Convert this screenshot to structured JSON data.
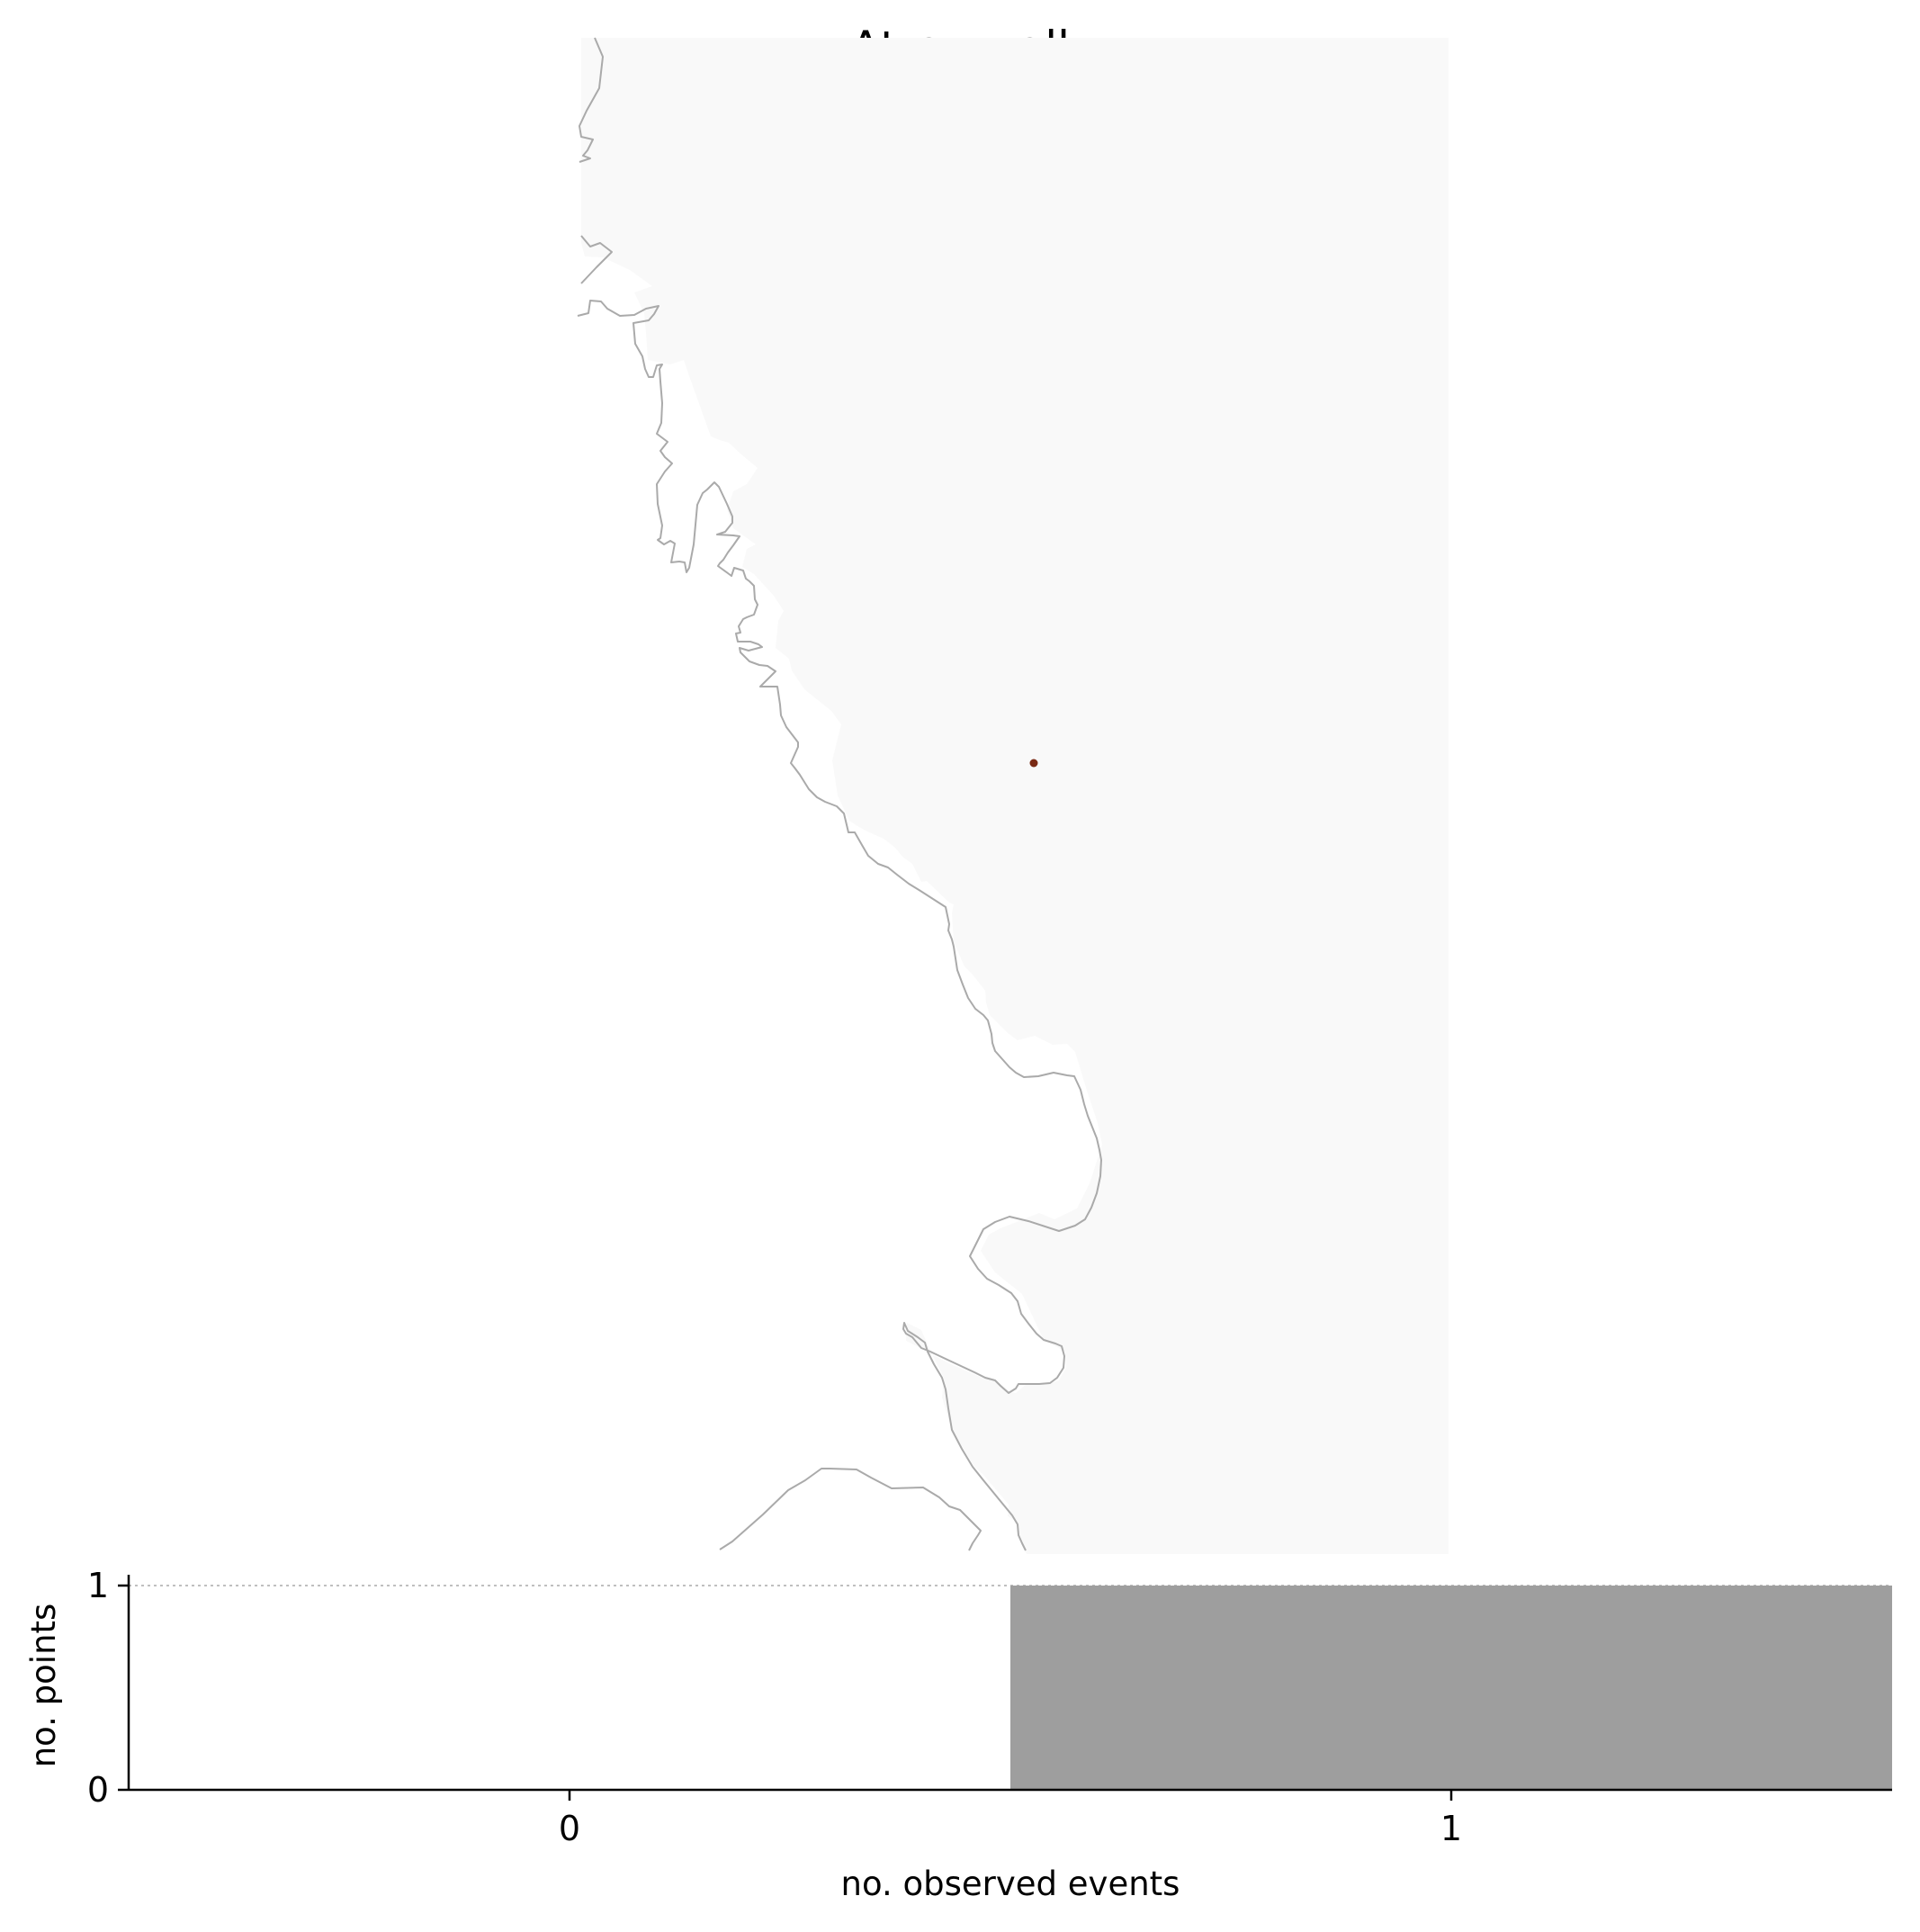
{
  "title": "Atran - all",
  "map": {
    "land_color": "#f9f9f9",
    "coast_color": "#aaaaaa",
    "event_marker_color": "#7a2a14"
  },
  "chart_data": {
    "type": "bar",
    "categories": [
      "0",
      "1"
    ],
    "values": [
      0,
      1
    ],
    "xlabel": "no. observed events",
    "ylabel": "no. points",
    "ylim": [
      0,
      1
    ],
    "yticks": [
      "0",
      "1"
    ],
    "bar_color": "#9e9e9e",
    "grid": "dotted line at y = 1"
  }
}
